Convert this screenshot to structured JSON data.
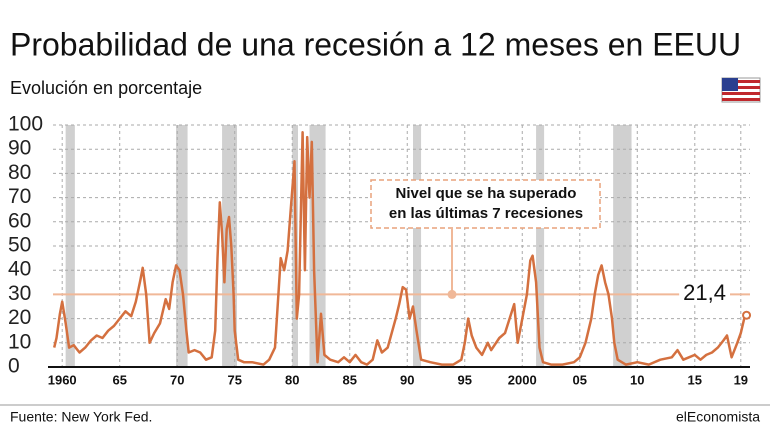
{
  "chart_data": {
    "type": "line",
    "title": "Probabilidad de una recesión a 12 meses en EEUU",
    "subtitle": "Evolución en porcentaje",
    "source": "Fuente: New York Fed.",
    "brand": "elEconomista",
    "annotation": [
      "Nivel que se ha superado",
      "en las últimas 7 recesiones"
    ],
    "threshold": 30,
    "end_label": {
      "value": 21.4,
      "label": "21,4"
    },
    "xlim": [
      1959.2,
      2019.8
    ],
    "ylim": [
      0,
      100
    ],
    "yticks": [
      0,
      10,
      20,
      30,
      40,
      50,
      60,
      70,
      80,
      90,
      100
    ],
    "xticks": [
      1960,
      {
        "value": 1965,
        "label": "65"
      },
      {
        "value": 1970,
        "label": "70"
      },
      {
        "value": 1975,
        "label": "75"
      },
      {
        "value": 1980,
        "label": "80"
      },
      {
        "value": 1985,
        "label": "85"
      },
      {
        "value": 1990,
        "label": "90"
      },
      {
        "value": 1995,
        "label": "95"
      },
      2000,
      {
        "value": 2005,
        "label": "05"
      },
      {
        "value": 2010,
        "label": "10"
      },
      {
        "value": 2015,
        "label": "15"
      },
      {
        "value": 2019,
        "label": "19"
      }
    ],
    "grid": true,
    "recessions": [
      [
        1960.3,
        1961.1
      ],
      [
        1969.9,
        1970.9
      ],
      [
        1973.9,
        1975.2
      ],
      [
        1980.0,
        1980.5
      ],
      [
        1981.5,
        1982.9
      ],
      [
        1990.5,
        1991.2
      ],
      [
        2001.2,
        2001.9
      ],
      [
        2007.9,
        2009.5
      ]
    ],
    "series": [
      {
        "name": "Probabilidad",
        "color": "#d4703f",
        "x": [
          1959.3,
          1959.5,
          1959.8,
          1960.0,
          1960.3,
          1960.6,
          1961.0,
          1961.5,
          1962.0,
          1962.5,
          1963.0,
          1963.5,
          1964.0,
          1964.5,
          1965.0,
          1965.5,
          1966.0,
          1966.4,
          1966.8,
          1967.0,
          1967.3,
          1967.6,
          1968.0,
          1968.5,
          1969.0,
          1969.3,
          1969.6,
          1969.9,
          1970.2,
          1970.5,
          1970.8,
          1971.0,
          1971.5,
          1972.0,
          1972.5,
          1973.0,
          1973.3,
          1973.5,
          1973.7,
          1973.9,
          1974.1,
          1974.3,
          1974.5,
          1974.7,
          1974.9,
          1975.0,
          1975.3,
          1975.8,
          1976.5,
          1977.5,
          1978.0,
          1978.5,
          1978.8,
          1979.0,
          1979.3,
          1979.6,
          1979.9,
          1980.2,
          1980.4,
          1980.6,
          1980.9,
          1981.1,
          1981.3,
          1981.5,
          1981.7,
          1981.9,
          1982.2,
          1982.5,
          1982.8,
          1983.3,
          1984.0,
          1984.5,
          1985.0,
          1985.5,
          1986.0,
          1986.5,
          1987.0,
          1987.4,
          1987.8,
          1988.3,
          1989.0,
          1989.3,
          1989.6,
          1989.9,
          1990.2,
          1990.5,
          1990.8,
          1991.2,
          1992.0,
          1993.0,
          1994.0,
          1994.7,
          1995.0,
          1995.3,
          1995.6,
          1996.0,
          1996.5,
          1997.0,
          1997.3,
          1998.0,
          1998.5,
          1998.9,
          1999.3,
          1999.6,
          2000.0,
          2000.4,
          2000.7,
          2000.9,
          2001.2,
          2001.5,
          2001.8,
          2002.5,
          2003.5,
          2004.5,
          2005.0,
          2005.5,
          2006.0,
          2006.3,
          2006.6,
          2006.9,
          2007.2,
          2007.5,
          2007.8,
          2008.0,
          2008.3,
          2009.0,
          2010.0,
          2011.0,
          2012.0,
          2013.0,
          2013.5,
          2014.0,
          2014.5,
          2015.0,
          2015.5,
          2016.0,
          2016.5,
          2017.0,
          2017.5,
          2017.8,
          2018.2,
          2018.7,
          2019.0,
          2019.3,
          2019.5
        ],
        "values": [
          8,
          12,
          22,
          27,
          18,
          8,
          9,
          6,
          8,
          11,
          13,
          12,
          15,
          17,
          20,
          23,
          21,
          27,
          36,
          41,
          30,
          10,
          14,
          18,
          28,
          24,
          35,
          42,
          40,
          30,
          15,
          6,
          7,
          6,
          3,
          4,
          15,
          45,
          68,
          55,
          35,
          57,
          62,
          50,
          30,
          15,
          3,
          2,
          2,
          1,
          3,
          8,
          30,
          45,
          40,
          48,
          67,
          85,
          20,
          30,
          97,
          40,
          95,
          70,
          93,
          40,
          2,
          22,
          5,
          3,
          2,
          4,
          2,
          5,
          2,
          1,
          3,
          11,
          6,
          8,
          20,
          26,
          33,
          32,
          20,
          25,
          15,
          3,
          2,
          1,
          1,
          3,
          10,
          20,
          13,
          8,
          5,
          10,
          7,
          12,
          14,
          20,
          26,
          10,
          20,
          30,
          44,
          46,
          35,
          8,
          2,
          1,
          1,
          2,
          4,
          10,
          20,
          30,
          38,
          42,
          35,
          30,
          20,
          10,
          3,
          1,
          2,
          1,
          3,
          4,
          7,
          3,
          4,
          5,
          3,
          5,
          6,
          8,
          11,
          13,
          4,
          10,
          14,
          20,
          21.4
        ]
      }
    ]
  }
}
